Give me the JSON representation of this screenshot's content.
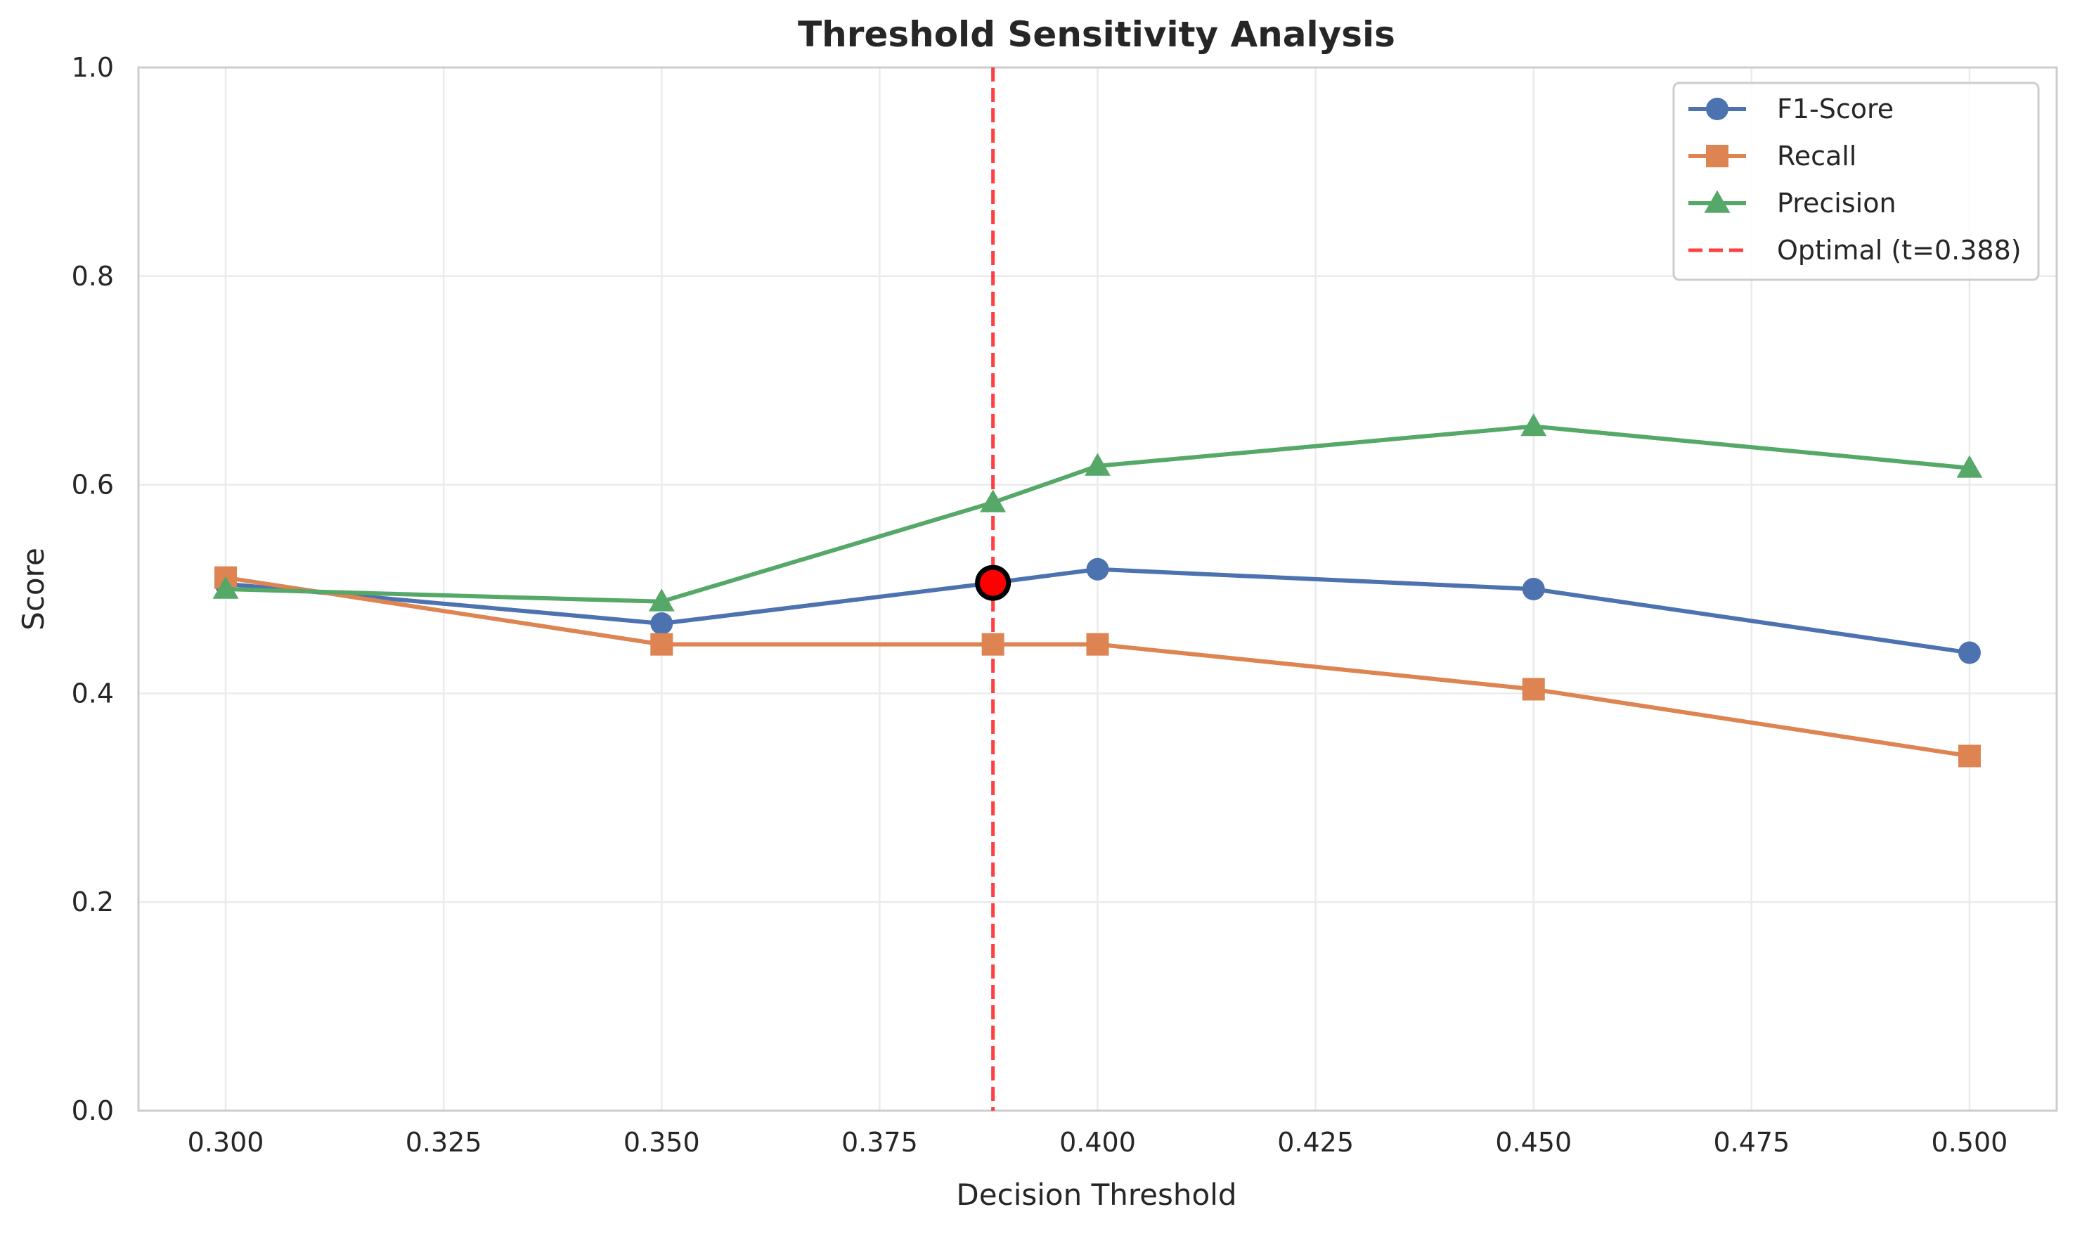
{
  "chart_data": {
    "type": "line",
    "title": "Threshold Sensitivity Analysis",
    "xlabel": "Decision Threshold",
    "ylabel": "Score",
    "xlim": [
      0.29,
      0.51
    ],
    "ylim": [
      0.0,
      1.0
    ],
    "xticks": [
      "0.300",
      "0.325",
      "0.350",
      "0.375",
      "0.400",
      "0.425",
      "0.450",
      "0.475",
      "0.500"
    ],
    "yticks": [
      "0.0",
      "0.2",
      "0.4",
      "0.6",
      "0.8",
      "1.0"
    ],
    "grid": true,
    "legend_position": "top-right",
    "x": [
      0.3,
      0.35,
      0.388,
      0.4,
      0.45,
      0.5
    ],
    "series": [
      {
        "name": "F1-Score",
        "color": "#4C72B0",
        "marker": "circle",
        "values": [
          0.505,
          0.467,
          0.506,
          0.519,
          0.5,
          0.439
        ]
      },
      {
        "name": "Recall",
        "color": "#DD8452",
        "marker": "square",
        "values": [
          0.511,
          0.447,
          0.447,
          0.447,
          0.404,
          0.34
        ]
      },
      {
        "name": "Precision",
        "color": "#55A868",
        "marker": "triangle",
        "values": [
          0.5,
          0.488,
          0.583,
          0.618,
          0.656,
          0.616
        ]
      }
    ],
    "optimal": {
      "label": "Optimal (t=0.388)",
      "x": 0.388,
      "y": 0.506,
      "color": "#FF0000"
    }
  }
}
